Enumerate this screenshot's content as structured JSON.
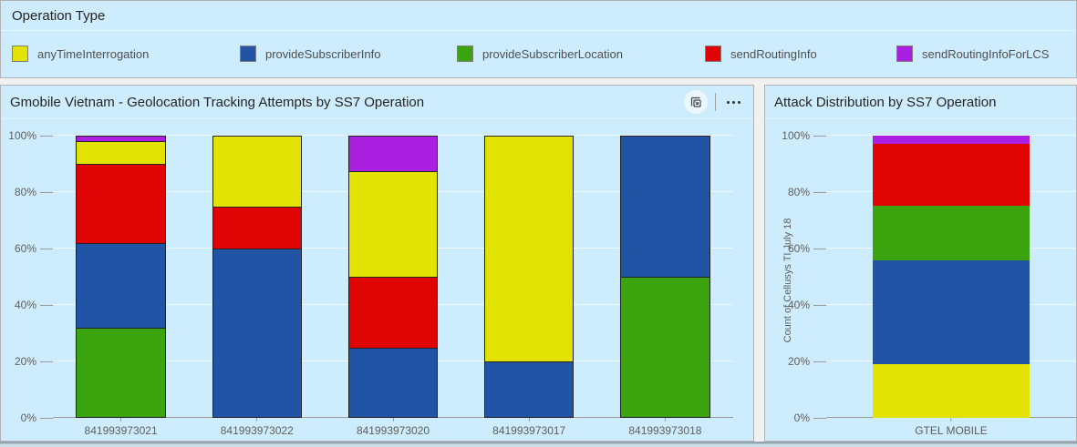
{
  "colors": {
    "panel_background": "#cdecfd",
    "anyTimeInterrogation": "#e3e205",
    "provideSubscriberInfo": "#2254a5",
    "provideSubscriberLocation": "#3aa30e",
    "sendRoutingInfo": "#e10404",
    "sendRoutingInfoForLCS": "#ab1fe1"
  },
  "legend_panel": {
    "title": "Operation Type",
    "items": [
      {
        "label": "anyTimeInterrogation",
        "color": "#e3e205",
        "icon": "yellow-swatch-icon"
      },
      {
        "label": "provideSubscriberInfo",
        "color": "#2254a5",
        "icon": "blue-swatch-icon"
      },
      {
        "label": "provideSubscriberLocation",
        "color": "#3aa30e",
        "icon": "green-swatch-icon"
      },
      {
        "label": "sendRoutingInfo",
        "color": "#e10404",
        "icon": "red-swatch-icon"
      },
      {
        "label": "sendRoutingInfoForLCS",
        "color": "#ab1fe1",
        "icon": "purple-swatch-icon"
      }
    ]
  },
  "left_panel": {
    "title": "Gmobile Vietnam - Geolocation Tracking Attempts by SS7 Operation",
    "toolbar": {
      "copy_icon": "copy-visual-icon",
      "more_icon": "more-options-icon"
    }
  },
  "right_panel": {
    "title": "Attack Distribution by SS7 Operation"
  },
  "chart_data": [
    {
      "type": "bar",
      "stacked": true,
      "percent": true,
      "title": "Gmobile Vietnam - Geolocation Tracking Attempts by SS7 Operation",
      "xlabel": "",
      "ylabel": "",
      "ylim": [
        0,
        100
      ],
      "yticks": [
        "0%",
        "20%",
        "40%",
        "60%",
        "80%",
        "100%"
      ],
      "grid": true,
      "segment_border": true,
      "legend_position": "top-panel",
      "categories": [
        "841993973021",
        "841993973022",
        "841993973020",
        "841993973017",
        "841993973018"
      ],
      "series": [
        {
          "name": "provideSubscriberLocation",
          "color": "#3aa30e",
          "values": [
            32,
            0,
            0,
            0,
            50
          ]
        },
        {
          "name": "provideSubscriberInfo",
          "color": "#2254a5",
          "values": [
            30,
            60,
            25,
            20,
            50
          ]
        },
        {
          "name": "sendRoutingInfo",
          "color": "#e10404",
          "values": [
            28,
            15,
            25,
            0,
            0
          ]
        },
        {
          "name": "anyTimeInterrogation",
          "color": "#e3e205",
          "values": [
            8,
            25,
            37.5,
            80,
            0
          ]
        },
        {
          "name": "sendRoutingInfoForLCS",
          "color": "#ab1fe1",
          "values": [
            2,
            0,
            12.5,
            0,
            0
          ]
        }
      ]
    },
    {
      "type": "bar",
      "stacked": true,
      "percent": true,
      "title": "Attack Distribution by SS7 Operation",
      "xlabel": "",
      "ylabel": "Count of Cellusys TI July 18",
      "ylim": [
        0,
        100
      ],
      "yticks": [
        "0%",
        "20%",
        "40%",
        "60%",
        "80%",
        "100%"
      ],
      "grid": true,
      "segment_border": false,
      "categories": [
        "GTEL MOBILE"
      ],
      "series": [
        {
          "name": "anyTimeInterrogation",
          "color": "#e3e205",
          "values": [
            19.5
          ]
        },
        {
          "name": "provideSubscriberInfo",
          "color": "#2254a5",
          "values": [
            36.5
          ]
        },
        {
          "name": "provideSubscriberLocation",
          "color": "#3aa30e",
          "values": [
            19.5
          ]
        },
        {
          "name": "sendRoutingInfo",
          "color": "#e10404",
          "values": [
            22
          ]
        },
        {
          "name": "sendRoutingInfoForLCS",
          "color": "#ab1fe1",
          "values": [
            2.5
          ]
        }
      ]
    }
  ]
}
